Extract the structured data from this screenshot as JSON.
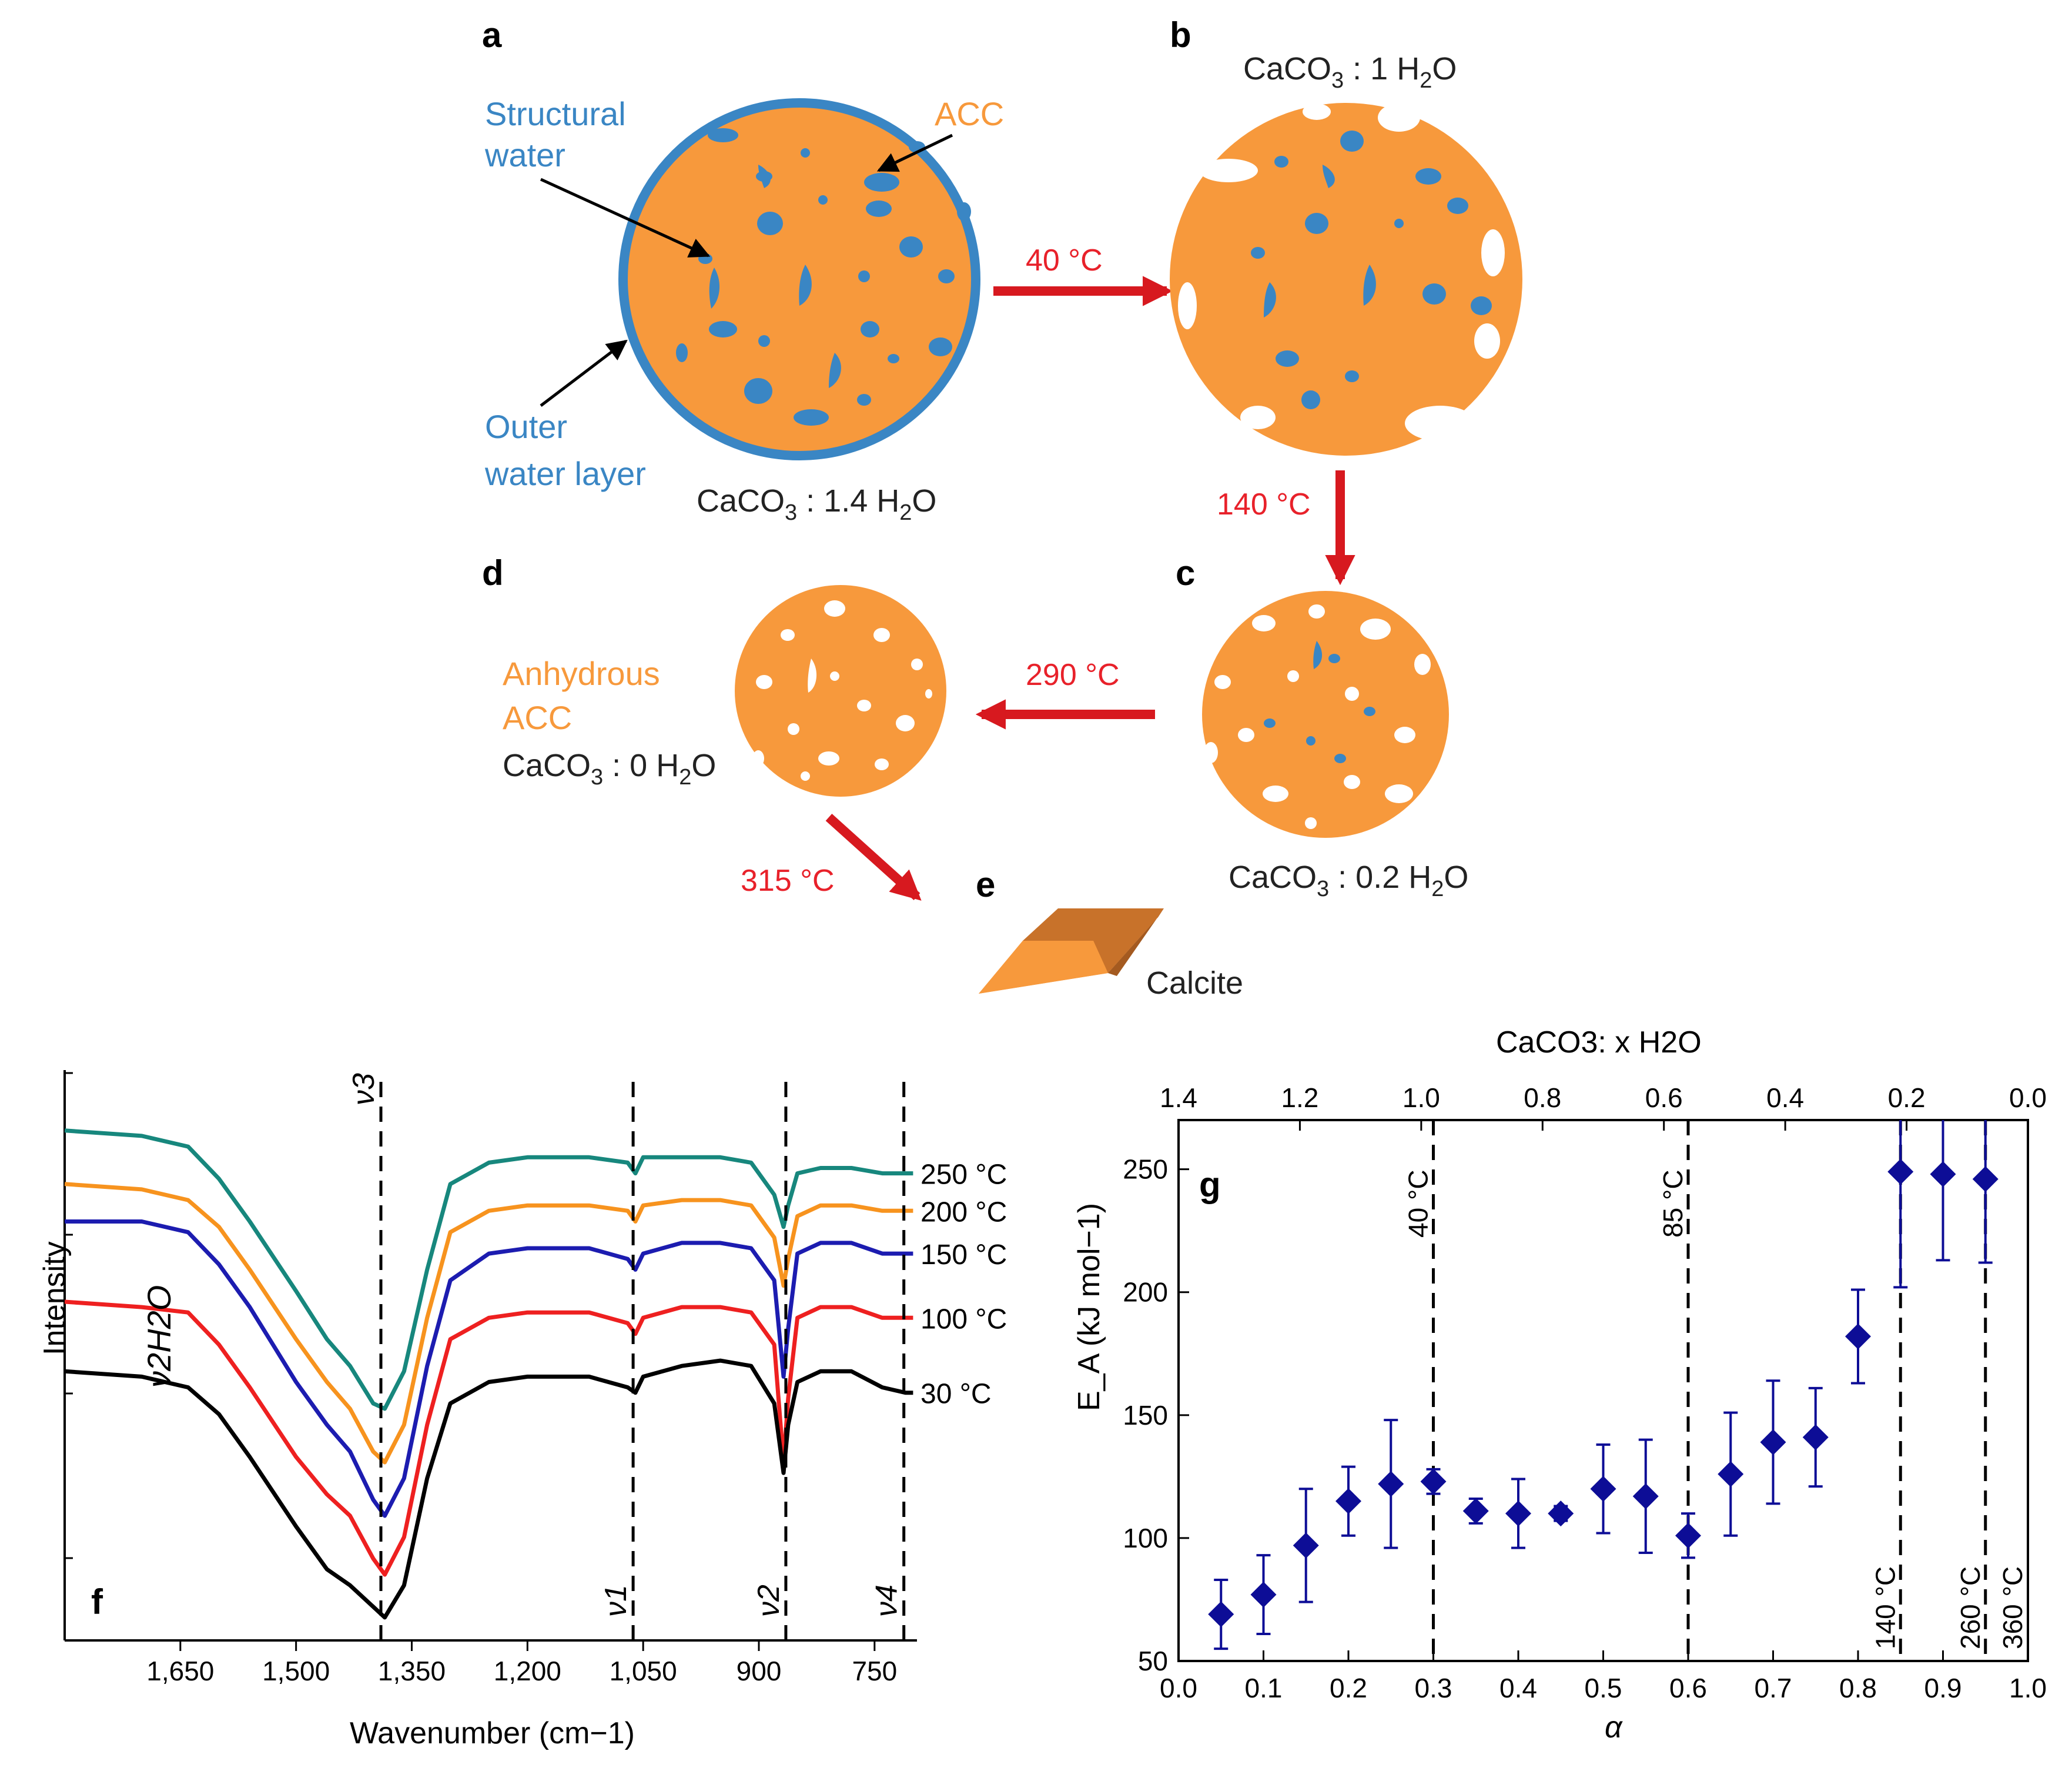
{
  "colors": {
    "acc_orange": "#f7993c",
    "water_blue": "#3a86c4",
    "arrow_red": "#d7191f",
    "point_navy": "#0d0d96",
    "teal": "#17877d",
    "orange_line": "#f7931e",
    "blue_line": "#1c1cb0",
    "red_line": "#ee2020",
    "black_line": "#000000"
  },
  "schematic": {
    "panel_a": {
      "letter": "a",
      "structural_water": [
        "Structural",
        "water"
      ],
      "acc": "ACC",
      "outer_water": [
        "Outer",
        "water layer"
      ],
      "formula": [
        "CaCO",
        "3",
        " : 1.4 H",
        "2",
        "O"
      ]
    },
    "panel_b": {
      "letter": "b",
      "formula": [
        "CaCO",
        "3",
        " : 1 H",
        "2",
        "O"
      ]
    },
    "panel_c": {
      "letter": "c",
      "formula": [
        "CaCO",
        "3",
        " : 0.2 H",
        "2",
        "O"
      ]
    },
    "panel_d": {
      "letter": "d",
      "anhydrous": [
        "Anhydrous",
        "ACC"
      ],
      "formula": [
        "CaCO",
        "3",
        " : 0 H",
        "2",
        "O"
      ]
    },
    "panel_e": {
      "letter": "e",
      "name": "Calcite"
    },
    "arrows": {
      "a_to_b": "40 °C",
      "b_to_c": "140 °C",
      "c_to_d": "290 °C",
      "d_to_e": "315 °C"
    }
  },
  "chart_data": [
    {
      "type": "line",
      "panel": "f",
      "xlabel": "Wavenumber (cm−1)",
      "ylabel": "Intensity",
      "x_ticks": [
        "1,650",
        "1,500",
        "1,350",
        "1,200",
        "1,050",
        "900",
        "750"
      ],
      "xlim": [
        1800,
        695
      ],
      "series": [
        {
          "name": "250 °C",
          "color": "#17877d",
          "x": [
            1800,
            1700,
            1640,
            1600,
            1560,
            1500,
            1460,
            1430,
            1400,
            1385,
            1360,
            1330,
            1300,
            1250,
            1200,
            1120,
            1070,
            1060,
            1050,
            1000,
            950,
            910,
            880,
            868,
            862,
            850,
            820,
            780,
            740,
            710,
            700
          ],
          "y": [
            0.92,
            0.91,
            0.89,
            0.83,
            0.75,
            0.62,
            0.53,
            0.48,
            0.41,
            0.4,
            0.47,
            0.66,
            0.82,
            0.86,
            0.87,
            0.87,
            0.86,
            0.84,
            0.87,
            0.87,
            0.87,
            0.86,
            0.8,
            0.74,
            0.78,
            0.84,
            0.85,
            0.85,
            0.84,
            0.84,
            0.84
          ]
        },
        {
          "name": "200 °C",
          "color": "#f7931e",
          "x": [
            1800,
            1700,
            1640,
            1600,
            1560,
            1500,
            1460,
            1430,
            1400,
            1385,
            1360,
            1330,
            1300,
            1250,
            1200,
            1120,
            1070,
            1060,
            1050,
            1000,
            950,
            910,
            880,
            868,
            862,
            850,
            820,
            780,
            740,
            710,
            700
          ],
          "y": [
            0.82,
            0.81,
            0.79,
            0.74,
            0.66,
            0.53,
            0.45,
            0.4,
            0.32,
            0.3,
            0.37,
            0.57,
            0.73,
            0.77,
            0.78,
            0.78,
            0.77,
            0.75,
            0.78,
            0.79,
            0.79,
            0.78,
            0.72,
            0.63,
            0.68,
            0.76,
            0.78,
            0.78,
            0.77,
            0.77,
            0.77
          ]
        },
        {
          "name": "150 °C",
          "color": "#1c1cb0",
          "x": [
            1800,
            1700,
            1640,
            1600,
            1560,
            1500,
            1460,
            1430,
            1400,
            1385,
            1360,
            1330,
            1300,
            1250,
            1200,
            1120,
            1070,
            1060,
            1050,
            1000,
            950,
            910,
            880,
            868,
            862,
            850,
            820,
            780,
            740,
            710,
            700
          ],
          "y": [
            0.75,
            0.75,
            0.73,
            0.67,
            0.59,
            0.45,
            0.37,
            0.32,
            0.23,
            0.2,
            0.27,
            0.48,
            0.64,
            0.69,
            0.7,
            0.7,
            0.68,
            0.66,
            0.69,
            0.71,
            0.71,
            0.7,
            0.64,
            0.46,
            0.55,
            0.69,
            0.71,
            0.71,
            0.69,
            0.69,
            0.69
          ]
        },
        {
          "name": "100 °C",
          "color": "#ee2020",
          "x": [
            1800,
            1700,
            1640,
            1600,
            1560,
            1500,
            1460,
            1430,
            1400,
            1385,
            1360,
            1330,
            1300,
            1250,
            1200,
            1120,
            1070,
            1060,
            1050,
            1000,
            950,
            910,
            880,
            868,
            862,
            850,
            820,
            780,
            740,
            710,
            700
          ],
          "y": [
            0.6,
            0.59,
            0.58,
            0.52,
            0.44,
            0.31,
            0.24,
            0.2,
            0.12,
            0.09,
            0.16,
            0.37,
            0.53,
            0.57,
            0.58,
            0.58,
            0.56,
            0.54,
            0.57,
            0.59,
            0.59,
            0.58,
            0.52,
            0.3,
            0.42,
            0.57,
            0.59,
            0.59,
            0.57,
            0.57,
            0.57
          ]
        },
        {
          "name": "30 °C",
          "color": "#000000",
          "x": [
            1800,
            1700,
            1640,
            1600,
            1560,
            1500,
            1460,
            1430,
            1400,
            1385,
            1360,
            1330,
            1300,
            1250,
            1200,
            1120,
            1070,
            1060,
            1050,
            1000,
            950,
            910,
            880,
            868,
            862,
            850,
            820,
            780,
            740,
            710,
            700
          ],
          "y": [
            0.47,
            0.46,
            0.44,
            0.39,
            0.31,
            0.18,
            0.1,
            0.07,
            0.03,
            0.01,
            0.07,
            0.27,
            0.41,
            0.45,
            0.46,
            0.46,
            0.44,
            0.43,
            0.46,
            0.48,
            0.49,
            0.48,
            0.41,
            0.28,
            0.37,
            0.45,
            0.47,
            0.47,
            0.44,
            0.43,
            0.43
          ]
        }
      ],
      "vertical_lines": [
        {
          "x": 1390,
          "label": "ν3"
        },
        {
          "x": 1063,
          "label": "ν1"
        },
        {
          "x": 865,
          "label": "ν2"
        },
        {
          "x": 712,
          "label": "ν4"
        }
      ],
      "annotation": "ν2H2O"
    },
    {
      "type": "scatter",
      "panel": "g",
      "xlabel": "α",
      "ylabel": "E_A (kJ mol−1)",
      "top_axis_label": "CaCO3: x H2O",
      "xlim": [
        0.0,
        1.0
      ],
      "ylim": [
        50,
        270
      ],
      "x_ticks": [
        "0.0",
        "0.1",
        "0.2",
        "0.3",
        "0.4",
        "0.5",
        "0.6",
        "0.7",
        "0.8",
        "0.9",
        "1.0"
      ],
      "y_ticks": [
        "50",
        "100",
        "150",
        "200",
        "250"
      ],
      "top_ticks": [
        "1.4",
        "1.2",
        "1.0",
        "0.8",
        "0.6",
        "0.4",
        "0.2",
        "0.0"
      ],
      "points": [
        {
          "x": 0.05,
          "y": 69,
          "err": 14
        },
        {
          "x": 0.1,
          "y": 77,
          "err": 16
        },
        {
          "x": 0.15,
          "y": 97,
          "err": 23
        },
        {
          "x": 0.2,
          "y": 115,
          "err": 14
        },
        {
          "x": 0.25,
          "y": 122,
          "err": 26
        },
        {
          "x": 0.3,
          "y": 123,
          "err": 5
        },
        {
          "x": 0.35,
          "y": 111,
          "err": 5
        },
        {
          "x": 0.4,
          "y": 110,
          "err": 14
        },
        {
          "x": 0.45,
          "y": 110,
          "err": 3
        },
        {
          "x": 0.5,
          "y": 120,
          "err": 18
        },
        {
          "x": 0.55,
          "y": 117,
          "err": 23
        },
        {
          "x": 0.6,
          "y": 101,
          "err": 9
        },
        {
          "x": 0.65,
          "y": 126,
          "err": 25
        },
        {
          "x": 0.7,
          "y": 139,
          "err": 25
        },
        {
          "x": 0.75,
          "y": 141,
          "err": 20
        },
        {
          "x": 0.8,
          "y": 182,
          "err": 19
        },
        {
          "x": 0.85,
          "y": 249,
          "err": 47
        },
        {
          "x": 0.9,
          "y": 248,
          "err": 35
        },
        {
          "x": 0.95,
          "y": 246,
          "err": 34
        }
      ],
      "vertical_lines": [
        {
          "x": 0.3,
          "label": "40 °C",
          "pos": "top"
        },
        {
          "x": 0.6,
          "label": "85 °C",
          "pos": "top"
        },
        {
          "x": 0.85,
          "label": "140 °C",
          "pos": "bottom"
        },
        {
          "x": 0.95,
          "label": "260 °C",
          "pos": "bottom"
        },
        {
          "x": 1.0,
          "label": "360 °C",
          "pos": "bottom"
        }
      ]
    }
  ],
  "panel_letters": {
    "f": "f",
    "g": "g"
  }
}
